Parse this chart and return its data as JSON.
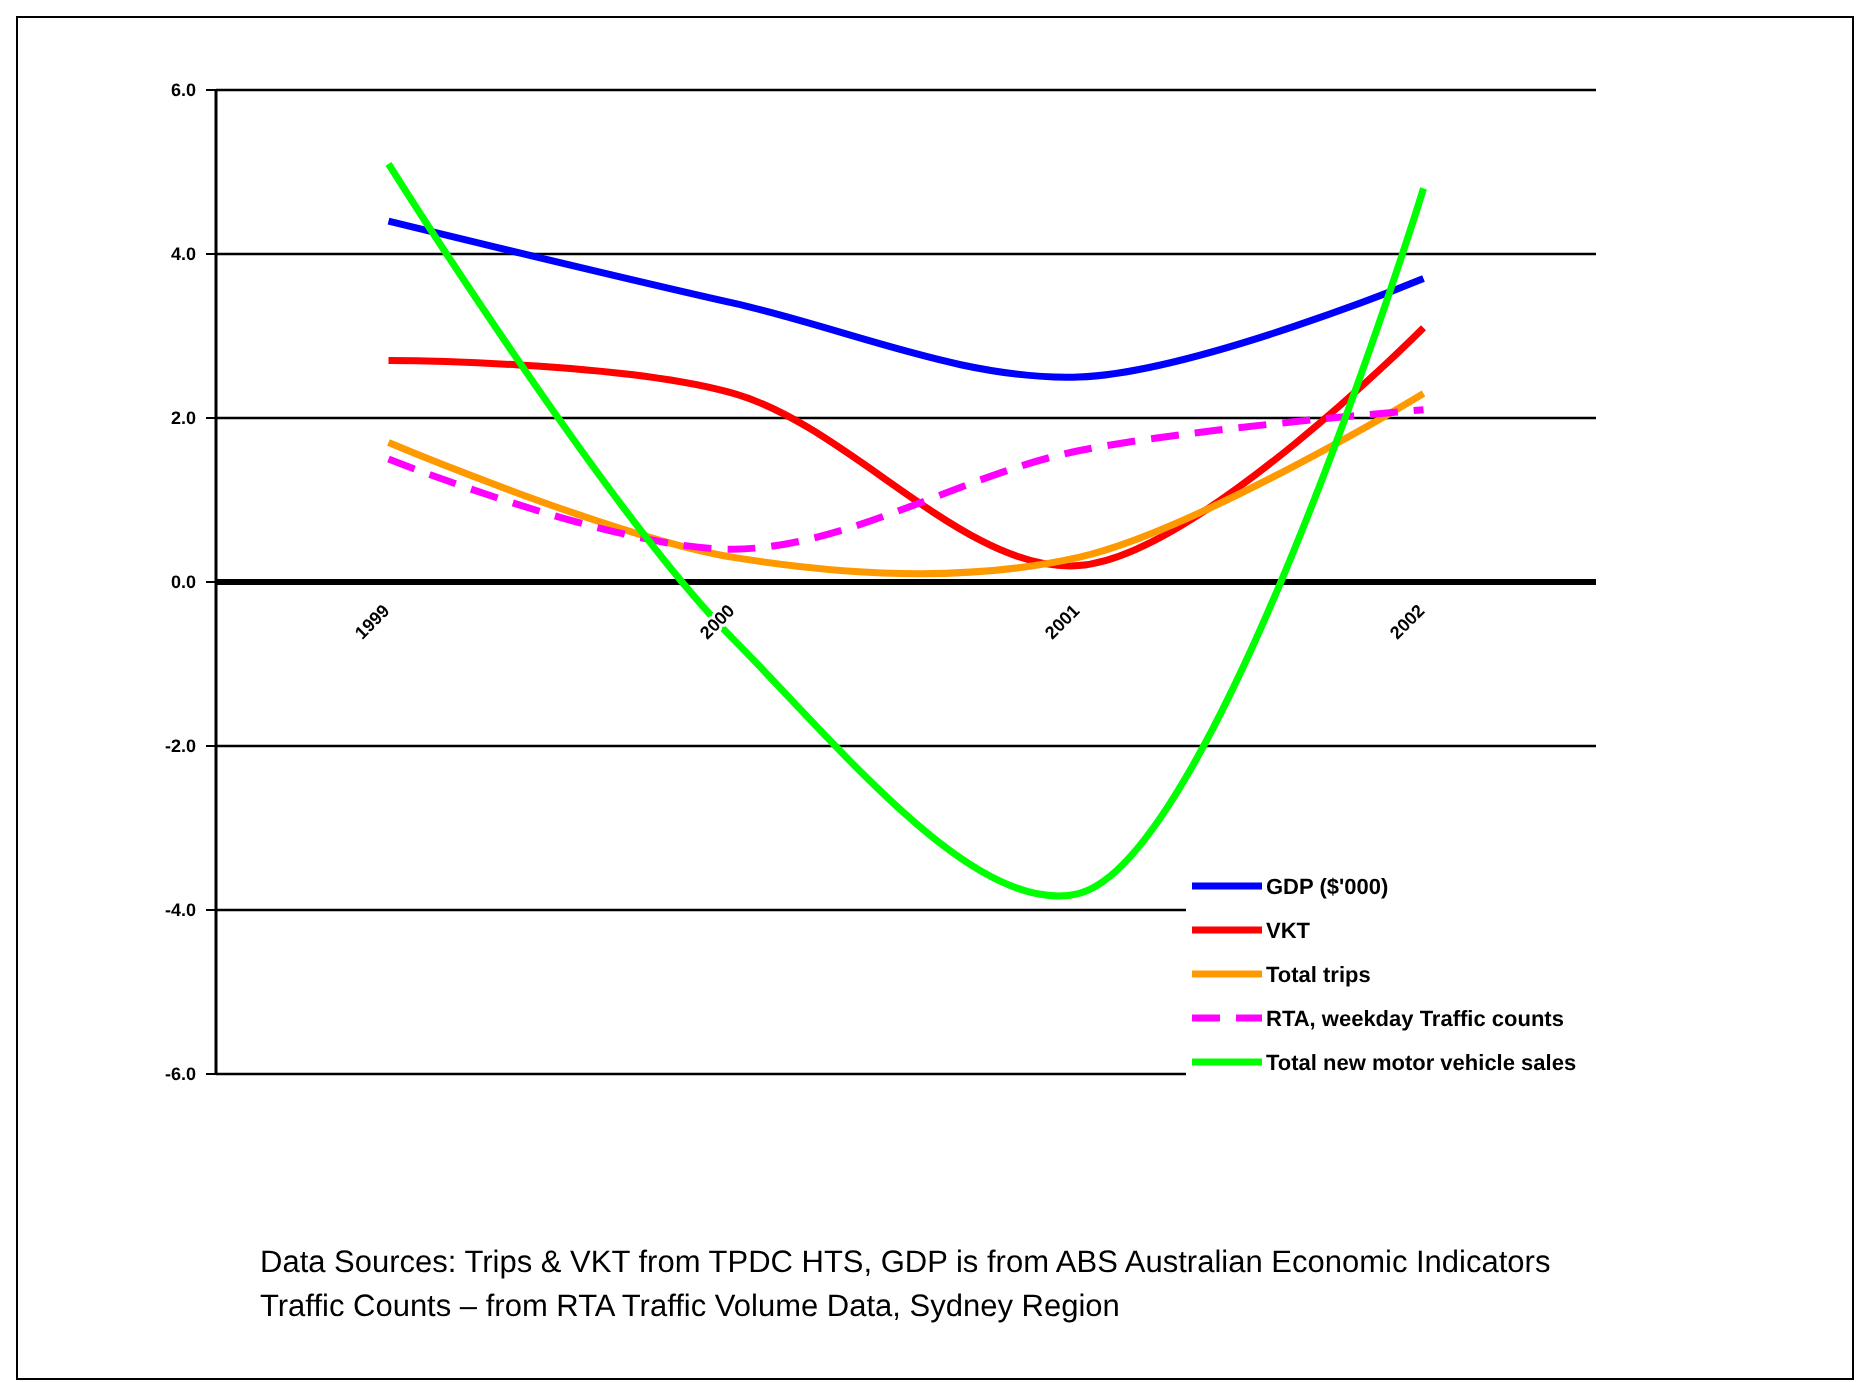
{
  "chart_data": {
    "type": "line",
    "categories": [
      "1999",
      "2000",
      "2001",
      "2002"
    ],
    "series": [
      {
        "name": "GDP ($'000)",
        "color": "#0000ff",
        "values": [
          4.4,
          3.4,
          2.5,
          3.7
        ]
      },
      {
        "name": "VKT",
        "color": "#ff0000",
        "values": [
          2.7,
          2.3,
          0.2,
          3.1
        ]
      },
      {
        "name": "Total trips",
        "color": "#ff9900",
        "values": [
          1.7,
          0.3,
          0.3,
          2.3
        ]
      },
      {
        "name": "RTA, weekday Traffic counts",
        "color": "#ff00ff",
        "values": [
          1.5,
          0.4,
          1.6,
          2.1
        ],
        "line_style": "dashed"
      },
      {
        "name": "Total new motor vehicle sales",
        "color": "#00ff00",
        "values": [
          5.1,
          -0.7,
          -3.8,
          4.8
        ]
      }
    ],
    "ylim": [
      -6,
      6
    ],
    "yticks": [
      {
        "value": -6,
        "label": "-6.0"
      },
      {
        "value": -4,
        "label": "-4.0"
      },
      {
        "value": -2,
        "label": "-2.0"
      },
      {
        "value": 0,
        "label": "0.0"
      },
      {
        "value": 2,
        "label": "2.0"
      },
      {
        "value": 4,
        "label": "4.0"
      },
      {
        "value": 6,
        "label": "6.0"
      }
    ],
    "grid": "y",
    "legend": "bottom right",
    "marker": "none",
    "line_style": "solid",
    "annotations": [
      "Data Sources:  Trips & VKT from TPDC HTS,  GDP is from ABS Australian Economic Indicators",
      "Traffic Counts – from RTA Traffic Volume Data, Sydney Region"
    ]
  }
}
